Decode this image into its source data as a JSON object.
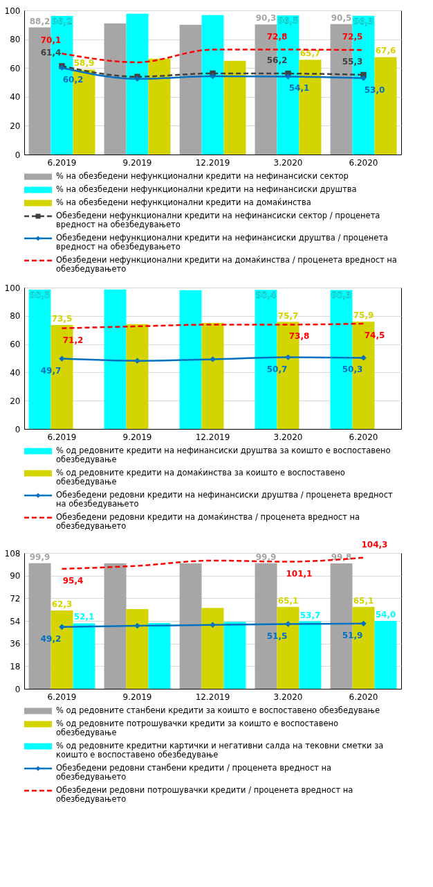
{
  "chart_data": [
    {
      "type": "bar",
      "categories": [
        "6.2019",
        "9.2019",
        "12.2019",
        "3.2020",
        "6.2020"
      ],
      "ylim": [
        0,
        100
      ],
      "yticks": [
        0,
        20,
        40,
        60,
        80,
        100
      ],
      "grid": "y",
      "legend": "bottom",
      "series": [
        {
          "name": "% на обезбедени нефункционални кредити на нефинансиски сектор",
          "color": "#a6a6a6",
          "values": [
            88.2,
            91.0,
            90.0,
            90.3,
            90.5
          ],
          "value_labels": [
            "88,2",
            null,
            null,
            "90,3",
            "90,5"
          ]
        },
        {
          "name": "% на обезбедени нефункционални кредити на нефинансиски друштва",
          "color": "#00ffff",
          "values": [
            96.2,
            97.7,
            96.8,
            96.5,
            96.3
          ],
          "value_labels": [
            "96,2",
            null,
            null,
            "96,5",
            "96,3"
          ]
        },
        {
          "name": "% на обезбедени нефункционални кредити на домаќинства",
          "color": "#d4d400",
          "values": [
            58.9,
            66.5,
            65.0,
            65.7,
            67.6
          ],
          "value_labels": [
            "58,9",
            null,
            null,
            "65,7",
            "67,6"
          ]
        },
        {
          "type": "line",
          "name": "Обезбедени нефункционални кредити на нефинансиски сектор / проценета вредност на обезбедувањето",
          "color": "#404040",
          "marker": "square",
          "line_style": "dashed",
          "values": [
            61.4,
            54.0,
            56.3,
            56.2,
            55.3
          ],
          "value_labels": [
            "61,4",
            null,
            null,
            "56,2",
            "55,3"
          ]
        },
        {
          "type": "line",
          "name": "Обезбедени нефункционални кредити на нефинансиски друштва / проценета вредност на обезбедувањето",
          "color": "#0070c0",
          "marker": "diamond",
          "line_style": "solid",
          "values": [
            60.2,
            52.5,
            54.3,
            54.1,
            53.0
          ],
          "value_labels": [
            "60,2",
            null,
            null,
            "54,1",
            "53,0"
          ]
        },
        {
          "type": "line",
          "name": "Обезбедени нефункционални кредити на домаќинства / проценета вредност на обезбедувањето",
          "color": "#ff0000",
          "marker": "none",
          "line_style": "dashed",
          "values": [
            70.1,
            64.0,
            72.8,
            72.8,
            72.5
          ],
          "value_labels": [
            "70,1",
            null,
            null,
            "72,8",
            "72,5"
          ]
        }
      ]
    },
    {
      "type": "bar",
      "categories": [
        "6.2019",
        "9.2019",
        "12.2019",
        "3.2020",
        "6.2020"
      ],
      "ylim": [
        0,
        100
      ],
      "yticks": [
        0,
        20,
        40,
        60,
        80,
        100
      ],
      "grid": "y",
      "legend": "bottom",
      "series": [
        {
          "name": "% од редовните кредити на нефинансиски друштва за коишто е воспоставено обезбедување",
          "color": "#00ffff",
          "values": [
            98.5,
            98.6,
            98.2,
            98.4,
            98.3
          ],
          "value_labels": [
            "98,5",
            null,
            null,
            "98,4",
            "98,3"
          ]
        },
        {
          "name": "% од редовните кредити на домаќинства за коишто е воспоставено обезбедување",
          "color": "#d4d400",
          "values": [
            73.5,
            74.1,
            75.0,
            75.7,
            75.9
          ],
          "value_labels": [
            "73,5",
            null,
            null,
            "75,7",
            "75,9"
          ]
        },
        {
          "type": "line",
          "name": "Обезбедени редовни кредити на нефинансиски друштва / проценета вредност на обезбедувањето",
          "color": "#0070c0",
          "marker": "diamond",
          "line_style": "solid",
          "values": [
            49.7,
            48.2,
            49.3,
            50.7,
            50.3
          ],
          "value_labels": [
            "49,7",
            null,
            null,
            "50,7",
            "50,3"
          ]
        },
        {
          "type": "line",
          "name": "Обезбедени редовни кредити на домаќинства / проценета вредност на обезбедувањето",
          "color": "#ff0000",
          "marker": "none",
          "line_style": "dashed",
          "values": [
            71.2,
            72.6,
            73.8,
            73.8,
            74.5
          ],
          "value_labels": [
            "71,2",
            null,
            null,
            "73,8",
            "74,5"
          ]
        }
      ]
    },
    {
      "type": "bar",
      "categories": [
        "6.2019",
        "9.2019",
        "12.2019",
        "3.2020",
        "6.2020"
      ],
      "ylim": [
        0,
        108
      ],
      "yticks": [
        0,
        18,
        36,
        54,
        72,
        90,
        108
      ],
      "grid": "y",
      "legend": "bottom",
      "series": [
        {
          "name": "% од редовните станбени кредити за коишто е воспоставено обезбедување",
          "color": "#a6a6a6",
          "values": [
            99.9,
            99.8,
            99.8,
            99.9,
            99.8
          ],
          "value_labels": [
            "99,9",
            null,
            null,
            "99,9",
            "99,8"
          ]
        },
        {
          "name": "% од редовните потрошувачки кредити за коишто е воспоставено обезбедување",
          "color": "#d4d400",
          "values": [
            62.3,
            63.3,
            64.3,
            65.1,
            65.1
          ],
          "value_labels": [
            "62,3",
            null,
            null,
            "65,1",
            "65,1"
          ]
        },
        {
          "name": "% од редовните кредитни картички и негативни салда на тековни сметки за коишто е воспоставено обезбедување",
          "color": "#00ffff",
          "values": [
            52.1,
            52.3,
            53.3,
            53.7,
            54.0
          ],
          "value_labels": [
            "52,1",
            null,
            null,
            "53,7",
            "54,0"
          ]
        },
        {
          "type": "line",
          "name": "Обезбедени редовни станбени кредити / проценета вредност на обезбедувањето",
          "color": "#0070c0",
          "marker": "diamond",
          "line_style": "solid",
          "values": [
            49.2,
            50.1,
            50.8,
            51.5,
            51.9
          ],
          "value_labels": [
            "49,2",
            null,
            null,
            "51,5",
            "51,9"
          ]
        },
        {
          "type": "line",
          "name": "Обезбедени редовни потрошувачки кредити / проценета вредност на обезбедувањето",
          "color": "#ff0000",
          "marker": "none",
          "line_style": "dashed",
          "values": [
            95.4,
            97.8,
            102.0,
            101.1,
            104.3
          ],
          "value_labels": [
            "95,4",
            null,
            null,
            "101,1",
            "104,3"
          ]
        }
      ]
    }
  ]
}
